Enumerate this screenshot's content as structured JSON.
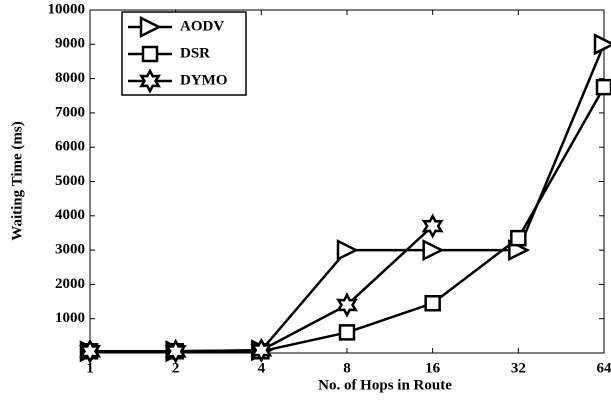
{
  "chart_data": {
    "type": "line",
    "xlabel": "No. of Hops in Route",
    "ylabel": "Waiting Time (ms)",
    "categories": [
      "1",
      "2",
      "4",
      "8",
      "16",
      "32",
      "64"
    ],
    "series": [
      {
        "name": "AODV",
        "color": "#000000",
        "marker": "triangle-right",
        "values": [
          50,
          50,
          80,
          3000,
          3000,
          3000,
          9000
        ]
      },
      {
        "name": "DSR",
        "color": "#000000",
        "marker": "square",
        "values": [
          50,
          50,
          50,
          600,
          1450,
          3350,
          7750
        ]
      },
      {
        "name": "DYMO",
        "color": "#000000",
        "marker": "hexagram",
        "values": [
          50,
          50,
          80,
          1400,
          3700,
          null,
          null
        ]
      }
    ],
    "ylim": [
      0,
      10000
    ],
    "yticks": [
      1000,
      2000,
      3000,
      4000,
      5000,
      6000,
      7000,
      8000,
      9000,
      10000
    ],
    "legend": "upper left"
  }
}
